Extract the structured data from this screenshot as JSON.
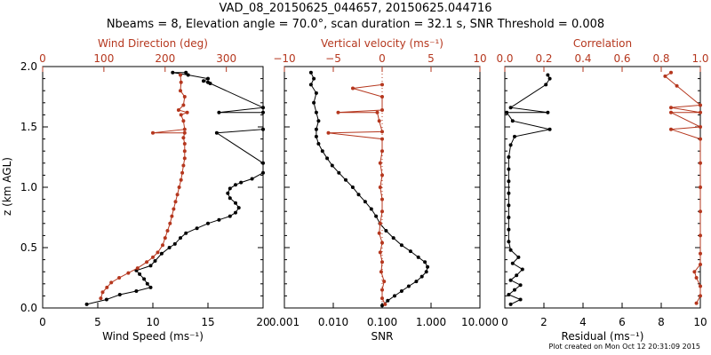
{
  "header": {
    "title": "VAD_08_20150625_044657, 20150625.044716",
    "subtitle": "Nbeams = 8, Elevation angle = 70.0°, scan duration = 32.1 s, SNR Threshold = 0.008"
  },
  "footer": {
    "text": "Plot created on Mon Oct 12 20:31:09 2015"
  },
  "colors": {
    "black_series": "#000000",
    "red_series": "#b5371e",
    "axis": "#000000"
  },
  "chart_data": [
    {
      "type": "line",
      "panel": "wind",
      "ylabel": "z (km AGL)",
      "ylim": [
        0,
        2.0
      ],
      "yticks": [
        "0.0",
        "0.5",
        "1.0",
        "1.5",
        "2.0"
      ],
      "bottom_axis": {
        "label": "Wind Speed (ms⁻¹)",
        "range": [
          0,
          20
        ],
        "ticks": [
          "0",
          "5",
          "10",
          "15",
          "20"
        ]
      },
      "top_axis": {
        "label": "Wind Direction (deg)",
        "range": [
          0,
          360
        ],
        "ticks": [
          "0",
          "100",
          "200",
          "300"
        ]
      },
      "series": [
        {
          "color": "#000000",
          "axis": "bottom",
          "points": [
            [
              4.0,
              0.03
            ],
            [
              5.8,
              0.07
            ],
            [
              7.0,
              0.11
            ],
            [
              8.5,
              0.14
            ],
            [
              9.8,
              0.17
            ],
            [
              9.5,
              0.2
            ],
            [
              9.2,
              0.24
            ],
            [
              8.8,
              0.28
            ],
            [
              8.5,
              0.31
            ],
            [
              9.8,
              0.35
            ],
            [
              10.2,
              0.39
            ],
            [
              10.8,
              0.45
            ],
            [
              11.5,
              0.5
            ],
            [
              12.0,
              0.53
            ],
            [
              12.5,
              0.58
            ],
            [
              13.0,
              0.62
            ],
            [
              14.0,
              0.66
            ],
            [
              15.0,
              0.7
            ],
            [
              16.0,
              0.73
            ],
            [
              17.0,
              0.76
            ],
            [
              17.5,
              0.79
            ],
            [
              17.8,
              0.83
            ],
            [
              17.5,
              0.87
            ],
            [
              17.0,
              0.91
            ],
            [
              16.8,
              0.95
            ],
            [
              17.0,
              0.99
            ],
            [
              17.5,
              1.02
            ],
            [
              18.0,
              1.04
            ],
            [
              19.0,
              1.07
            ],
            [
              20.0,
              1.12
            ],
            [
              20.0,
              1.2
            ],
            [
              15.8,
              1.45
            ],
            [
              20.0,
              1.48
            ],
            [
              20.0,
              1.62
            ],
            [
              16.0,
              1.62
            ],
            [
              20.0,
              1.66
            ],
            [
              15.2,
              1.86
            ],
            [
              15.0,
              1.87
            ],
            [
              14.6,
              1.88
            ],
            [
              15.0,
              1.9
            ],
            [
              13.2,
              1.93
            ],
            [
              11.8,
              1.95
            ],
            [
              13.0,
              1.95
            ]
          ]
        },
        {
          "color": "#b5371e",
          "axis": "top",
          "points": [
            [
              95,
              0.08
            ],
            [
              98,
              0.13
            ],
            [
              105,
              0.17
            ],
            [
              112,
              0.21
            ],
            [
              125,
              0.25
            ],
            [
              140,
              0.29
            ],
            [
              155,
              0.33
            ],
            [
              170,
              0.38
            ],
            [
              180,
              0.42
            ],
            [
              188,
              0.46
            ],
            [
              196,
              0.52
            ],
            [
              200,
              0.58
            ],
            [
              204,
              0.64
            ],
            [
              208,
              0.7
            ],
            [
              211,
              0.76
            ],
            [
              214,
              0.82
            ],
            [
              217,
              0.88
            ],
            [
              220,
              0.94
            ],
            [
              223,
              1.0
            ],
            [
              226,
              1.06
            ],
            [
              228,
              1.12
            ],
            [
              230,
              1.18
            ],
            [
              232,
              1.24
            ],
            [
              232,
              1.3
            ],
            [
              232,
              1.36
            ],
            [
              230,
              1.41
            ],
            [
              232,
              1.45
            ],
            [
              180,
              1.45
            ],
            [
              232,
              1.48
            ],
            [
              230,
              1.55
            ],
            [
              226,
              1.6
            ],
            [
              236,
              1.62
            ],
            [
              222,
              1.64
            ],
            [
              230,
              1.68
            ],
            [
              232,
              1.75
            ],
            [
              225,
              1.8
            ],
            [
              226,
              1.87
            ],
            [
              225,
              1.93
            ]
          ]
        }
      ]
    },
    {
      "type": "line",
      "panel": "vertical-velocity",
      "ylim": [
        0,
        2.0
      ],
      "bottom_axis": {
        "label": "SNR",
        "scale": "log",
        "range": [
          0.001,
          10.0
        ],
        "ticks": [
          "0.001",
          "0.010",
          "0.100",
          "1.000",
          "10.000"
        ]
      },
      "top_axis": {
        "label": "Vertical velocity (ms⁻¹)",
        "range": [
          -10,
          10
        ],
        "ticks": [
          "−10",
          "−5",
          "0",
          "5",
          "10"
        ]
      },
      "reference_line": {
        "axis": "top",
        "value": 0,
        "style": "dotted",
        "color": "#b5371e"
      },
      "series": [
        {
          "color": "#000000",
          "axis": "bottom",
          "points": [
            [
              0.1,
              0.02
            ],
            [
              0.13,
              0.06
            ],
            [
              0.18,
              0.1
            ],
            [
              0.25,
              0.14
            ],
            [
              0.35,
              0.18
            ],
            [
              0.5,
              0.22
            ],
            [
              0.65,
              0.26
            ],
            [
              0.8,
              0.3
            ],
            [
              0.85,
              0.34
            ],
            [
              0.75,
              0.38
            ],
            [
              0.55,
              0.42
            ],
            [
              0.38,
              0.47
            ],
            [
              0.25,
              0.52
            ],
            [
              0.17,
              0.58
            ],
            [
              0.12,
              0.64
            ],
            [
              0.09,
              0.7
            ],
            [
              0.075,
              0.76
            ],
            [
              0.06,
              0.82
            ],
            [
              0.045,
              0.88
            ],
            [
              0.033,
              0.94
            ],
            [
              0.025,
              1.0
            ],
            [
              0.018,
              1.06
            ],
            [
              0.013,
              1.12
            ],
            [
              0.0095,
              1.18
            ],
            [
              0.0075,
              1.24
            ],
            [
              0.006,
              1.3
            ],
            [
              0.005,
              1.36
            ],
            [
              0.0045,
              1.42
            ],
            [
              0.0045,
              1.48
            ],
            [
              0.005,
              1.55
            ],
            [
              0.0045,
              1.62
            ],
            [
              0.004,
              1.7
            ],
            [
              0.0045,
              1.78
            ],
            [
              0.0035,
              1.85
            ],
            [
              0.004,
              1.9
            ],
            [
              0.0035,
              1.95
            ]
          ]
        },
        {
          "color": "#b5371e",
          "axis": "top",
          "points": [
            [
              0.3,
              0.03
            ],
            [
              0.0,
              0.08
            ],
            [
              0.0,
              0.15
            ],
            [
              0.2,
              0.22
            ],
            [
              -0.1,
              0.3
            ],
            [
              0.0,
              0.38
            ],
            [
              -0.2,
              0.46
            ],
            [
              0.0,
              0.54
            ],
            [
              -0.3,
              0.62
            ],
            [
              -0.2,
              0.7
            ],
            [
              0.0,
              0.8
            ],
            [
              0.0,
              0.9
            ],
            [
              -0.2,
              1.0
            ],
            [
              0.0,
              1.1
            ],
            [
              -0.2,
              1.2
            ],
            [
              0.0,
              1.3
            ],
            [
              0.0,
              1.4
            ],
            [
              -5.5,
              1.45
            ],
            [
              0.0,
              1.46
            ],
            [
              -0.3,
              1.55
            ],
            [
              -0.5,
              1.62
            ],
            [
              -4.5,
              1.62
            ],
            [
              0.0,
              1.64
            ],
            [
              0.0,
              1.75
            ],
            [
              -3.0,
              1.82
            ],
            [
              0.0,
              1.85
            ]
          ]
        }
      ]
    },
    {
      "type": "line",
      "panel": "correlation",
      "ylim": [
        0,
        2.0
      ],
      "bottom_axis": {
        "label": "Residual (ms⁻¹)",
        "range": [
          0,
          10
        ],
        "ticks": [
          "0",
          "2",
          "4",
          "6",
          "8",
          "10"
        ]
      },
      "top_axis": {
        "label": "Correlation",
        "range": [
          0.0,
          1.0
        ],
        "ticks": [
          "0.0",
          "0.2",
          "0.4",
          "0.6",
          "0.8",
          "1.0"
        ]
      },
      "series": [
        {
          "color": "#000000",
          "axis": "bottom",
          "points": [
            [
              0.3,
              0.03
            ],
            [
              0.8,
              0.07
            ],
            [
              0.2,
              0.11
            ],
            [
              0.5,
              0.15
            ],
            [
              0.8,
              0.19
            ],
            [
              0.3,
              0.23
            ],
            [
              0.6,
              0.27
            ],
            [
              0.9,
              0.32
            ],
            [
              0.4,
              0.37
            ],
            [
              0.7,
              0.42
            ],
            [
              0.3,
              0.48
            ],
            [
              0.2,
              0.55
            ],
            [
              0.2,
              0.65
            ],
            [
              0.2,
              0.75
            ],
            [
              0.2,
              0.85
            ],
            [
              0.2,
              0.95
            ],
            [
              0.2,
              1.05
            ],
            [
              0.2,
              1.15
            ],
            [
              0.2,
              1.25
            ],
            [
              0.3,
              1.35
            ],
            [
              0.5,
              1.42
            ],
            [
              2.3,
              1.48
            ],
            [
              0.4,
              1.55
            ],
            [
              0.1,
              1.62
            ],
            [
              2.2,
              1.62
            ],
            [
              0.3,
              1.66
            ],
            [
              2.1,
              1.85
            ],
            [
              2.3,
              1.9
            ],
            [
              2.2,
              1.93
            ]
          ]
        },
        {
          "color": "#b5371e",
          "axis": "top",
          "points": [
            [
              0.98,
              0.04
            ],
            [
              1.0,
              0.1
            ],
            [
              1.0,
              0.18
            ],
            [
              0.98,
              0.25
            ],
            [
              0.97,
              0.3
            ],
            [
              1.0,
              0.36
            ],
            [
              1.0,
              0.45
            ],
            [
              1.0,
              0.6
            ],
            [
              1.0,
              0.8
            ],
            [
              1.0,
              1.0
            ],
            [
              1.0,
              1.2
            ],
            [
              1.0,
              1.4
            ],
            [
              0.85,
              1.48
            ],
            [
              1.0,
              1.5
            ],
            [
              0.85,
              1.62
            ],
            [
              1.0,
              1.62
            ],
            [
              0.85,
              1.66
            ],
            [
              1.0,
              1.68
            ],
            [
              0.88,
              1.84
            ],
            [
              0.82,
              1.92
            ],
            [
              0.85,
              1.95
            ]
          ]
        }
      ]
    }
  ]
}
